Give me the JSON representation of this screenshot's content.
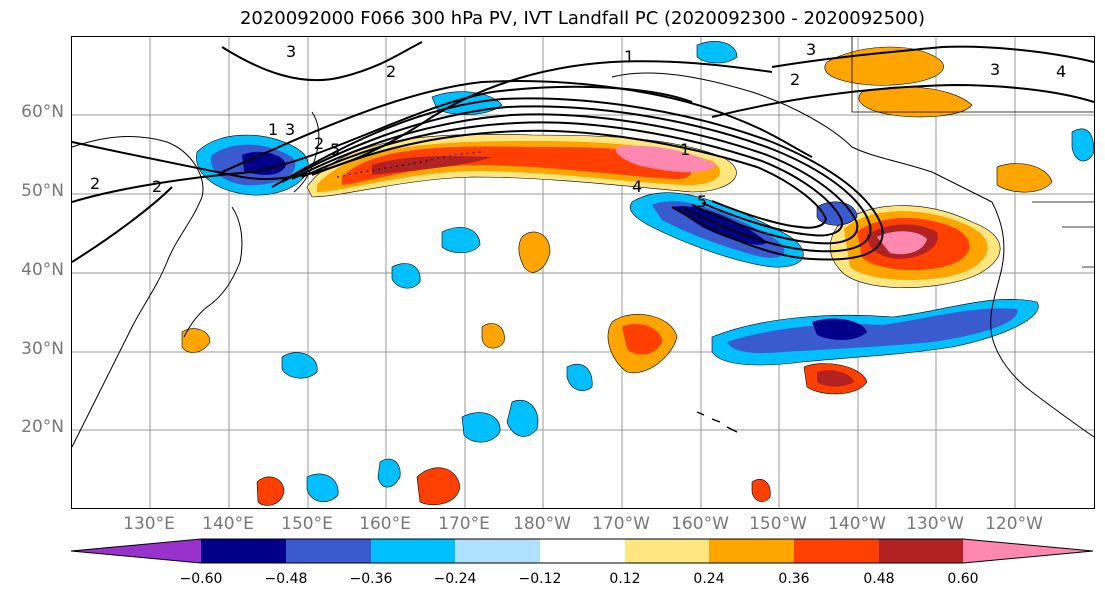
{
  "title": "2020092000 F066 300 hPa PV, IVT Landfall PC (2020092300 - 2020092500)",
  "lat_labels": [
    "60°N",
    "50°N",
    "40°N",
    "30°N",
    "20°N"
  ],
  "lon_labels": [
    "130°E",
    "140°E",
    "150°E",
    "160°E",
    "170°E",
    "180°W",
    "170°W",
    "160°W",
    "150°W",
    "140°W",
    "130°W",
    "120°W"
  ],
  "colorbar": {
    "colors": [
      "#9932CC",
      "#00008B",
      "#3A5BD0",
      "#00BFFF",
      "#B0E0FF",
      "#FFFFFF",
      "#FFE680",
      "#FFA500",
      "#FF4000",
      "#B22222",
      "#FF88B0"
    ],
    "tick_labels": [
      "−0.60",
      "−0.48",
      "−0.36",
      "−0.24",
      "−0.12",
      "0.12",
      "0.24",
      "0.36",
      "0.48",
      "0.60"
    ]
  },
  "contour_labels": [
    "3",
    "2",
    "1",
    "3",
    "2",
    "3",
    "4",
    "2",
    "2",
    "1",
    "3",
    "2",
    "5",
    "1",
    "4",
    "5"
  ]
}
